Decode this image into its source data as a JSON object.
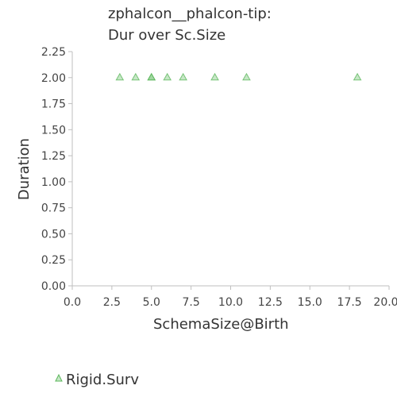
{
  "chart_data": {
    "type": "scatter",
    "title_lines": [
      "zphalcon__phalcon-tip:",
      "Dur over Sc.Size"
    ],
    "xlabel": "SchemaSize@Birth",
    "ylabel": "Duration",
    "xlim": [
      0,
      20
    ],
    "ylim": [
      0,
      2.25
    ],
    "x_ticks": [
      "0.0",
      "2.5",
      "5.0",
      "7.5",
      "10.0",
      "12.5",
      "15.0",
      "17.5",
      "20.0"
    ],
    "y_ticks": [
      "0.00",
      "0.25",
      "0.50",
      "0.75",
      "1.00",
      "1.25",
      "1.50",
      "1.75",
      "2.00",
      "2.25"
    ],
    "grid": false,
    "legend_position": "bottom-left",
    "series": [
      {
        "name": "Rigid.Surv",
        "marker": "triangle",
        "color": "#5cb85c",
        "points": [
          {
            "x": 3,
            "y": 2.0
          },
          {
            "x": 4,
            "y": 2.0
          },
          {
            "x": 5,
            "y": 2.0
          },
          {
            "x": 5,
            "y": 2.0
          },
          {
            "x": 6,
            "y": 2.0
          },
          {
            "x": 7,
            "y": 2.0
          },
          {
            "x": 9,
            "y": 2.0
          },
          {
            "x": 11,
            "y": 2.0
          },
          {
            "x": 18,
            "y": 2.0
          }
        ]
      }
    ]
  }
}
